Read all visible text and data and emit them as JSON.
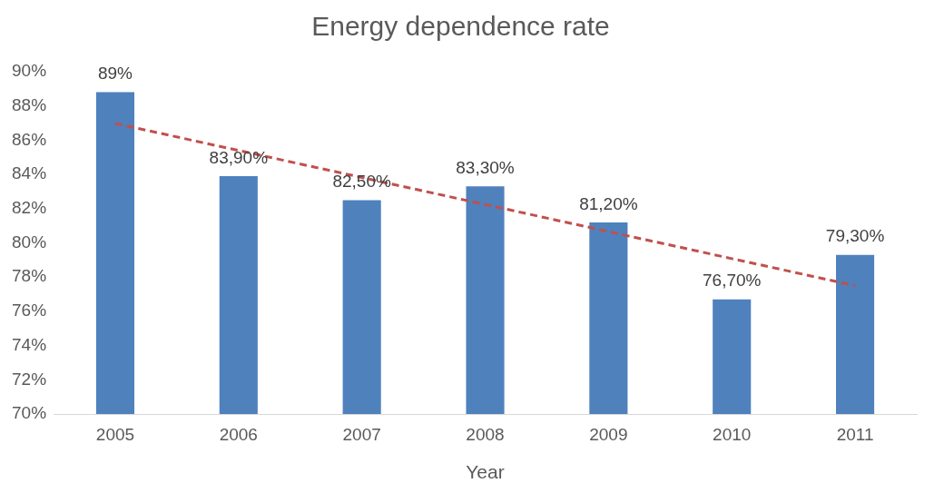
{
  "chart_data": {
    "type": "bar",
    "title": "Energy dependence rate",
    "xlabel": "Year",
    "categories": [
      "2005",
      "2006",
      "2007",
      "2008",
      "2009",
      "2010",
      "2011"
    ],
    "series": [
      {
        "color": "#4f81bd",
        "values": [
          88.8,
          83.9,
          82.5,
          83.3,
          81.2,
          76.7,
          79.3
        ],
        "value_labels": [
          "89%",
          "83,90%",
          "82,50%",
          "83,30%",
          "81,20%",
          "76,70%",
          "79,30%"
        ]
      },
      {
        "type": "line",
        "color": "#c0504d",
        "line_style": "dashed",
        "marker": "none",
        "values": [
          86.98,
          85.4,
          83.82,
          82.24,
          80.66,
          79.08,
          77.5
        ]
      }
    ],
    "ylim": [
      70,
      90
    ],
    "yticks": [
      {
        "value": 70,
        "label": "70%"
      },
      {
        "value": 72,
        "label": "72%"
      },
      {
        "value": 74,
        "label": "74%"
      },
      {
        "value": 76,
        "label": "76%"
      },
      {
        "value": 78,
        "label": "78%"
      },
      {
        "value": 80,
        "label": "80%"
      },
      {
        "value": 82,
        "label": "82%"
      },
      {
        "value": 84,
        "label": "84%"
      },
      {
        "value": 86,
        "label": "86%"
      },
      {
        "value": 88,
        "label": "88%"
      },
      {
        "value": 90,
        "label": "90%"
      }
    ],
    "grid": false,
    "legend": false
  }
}
